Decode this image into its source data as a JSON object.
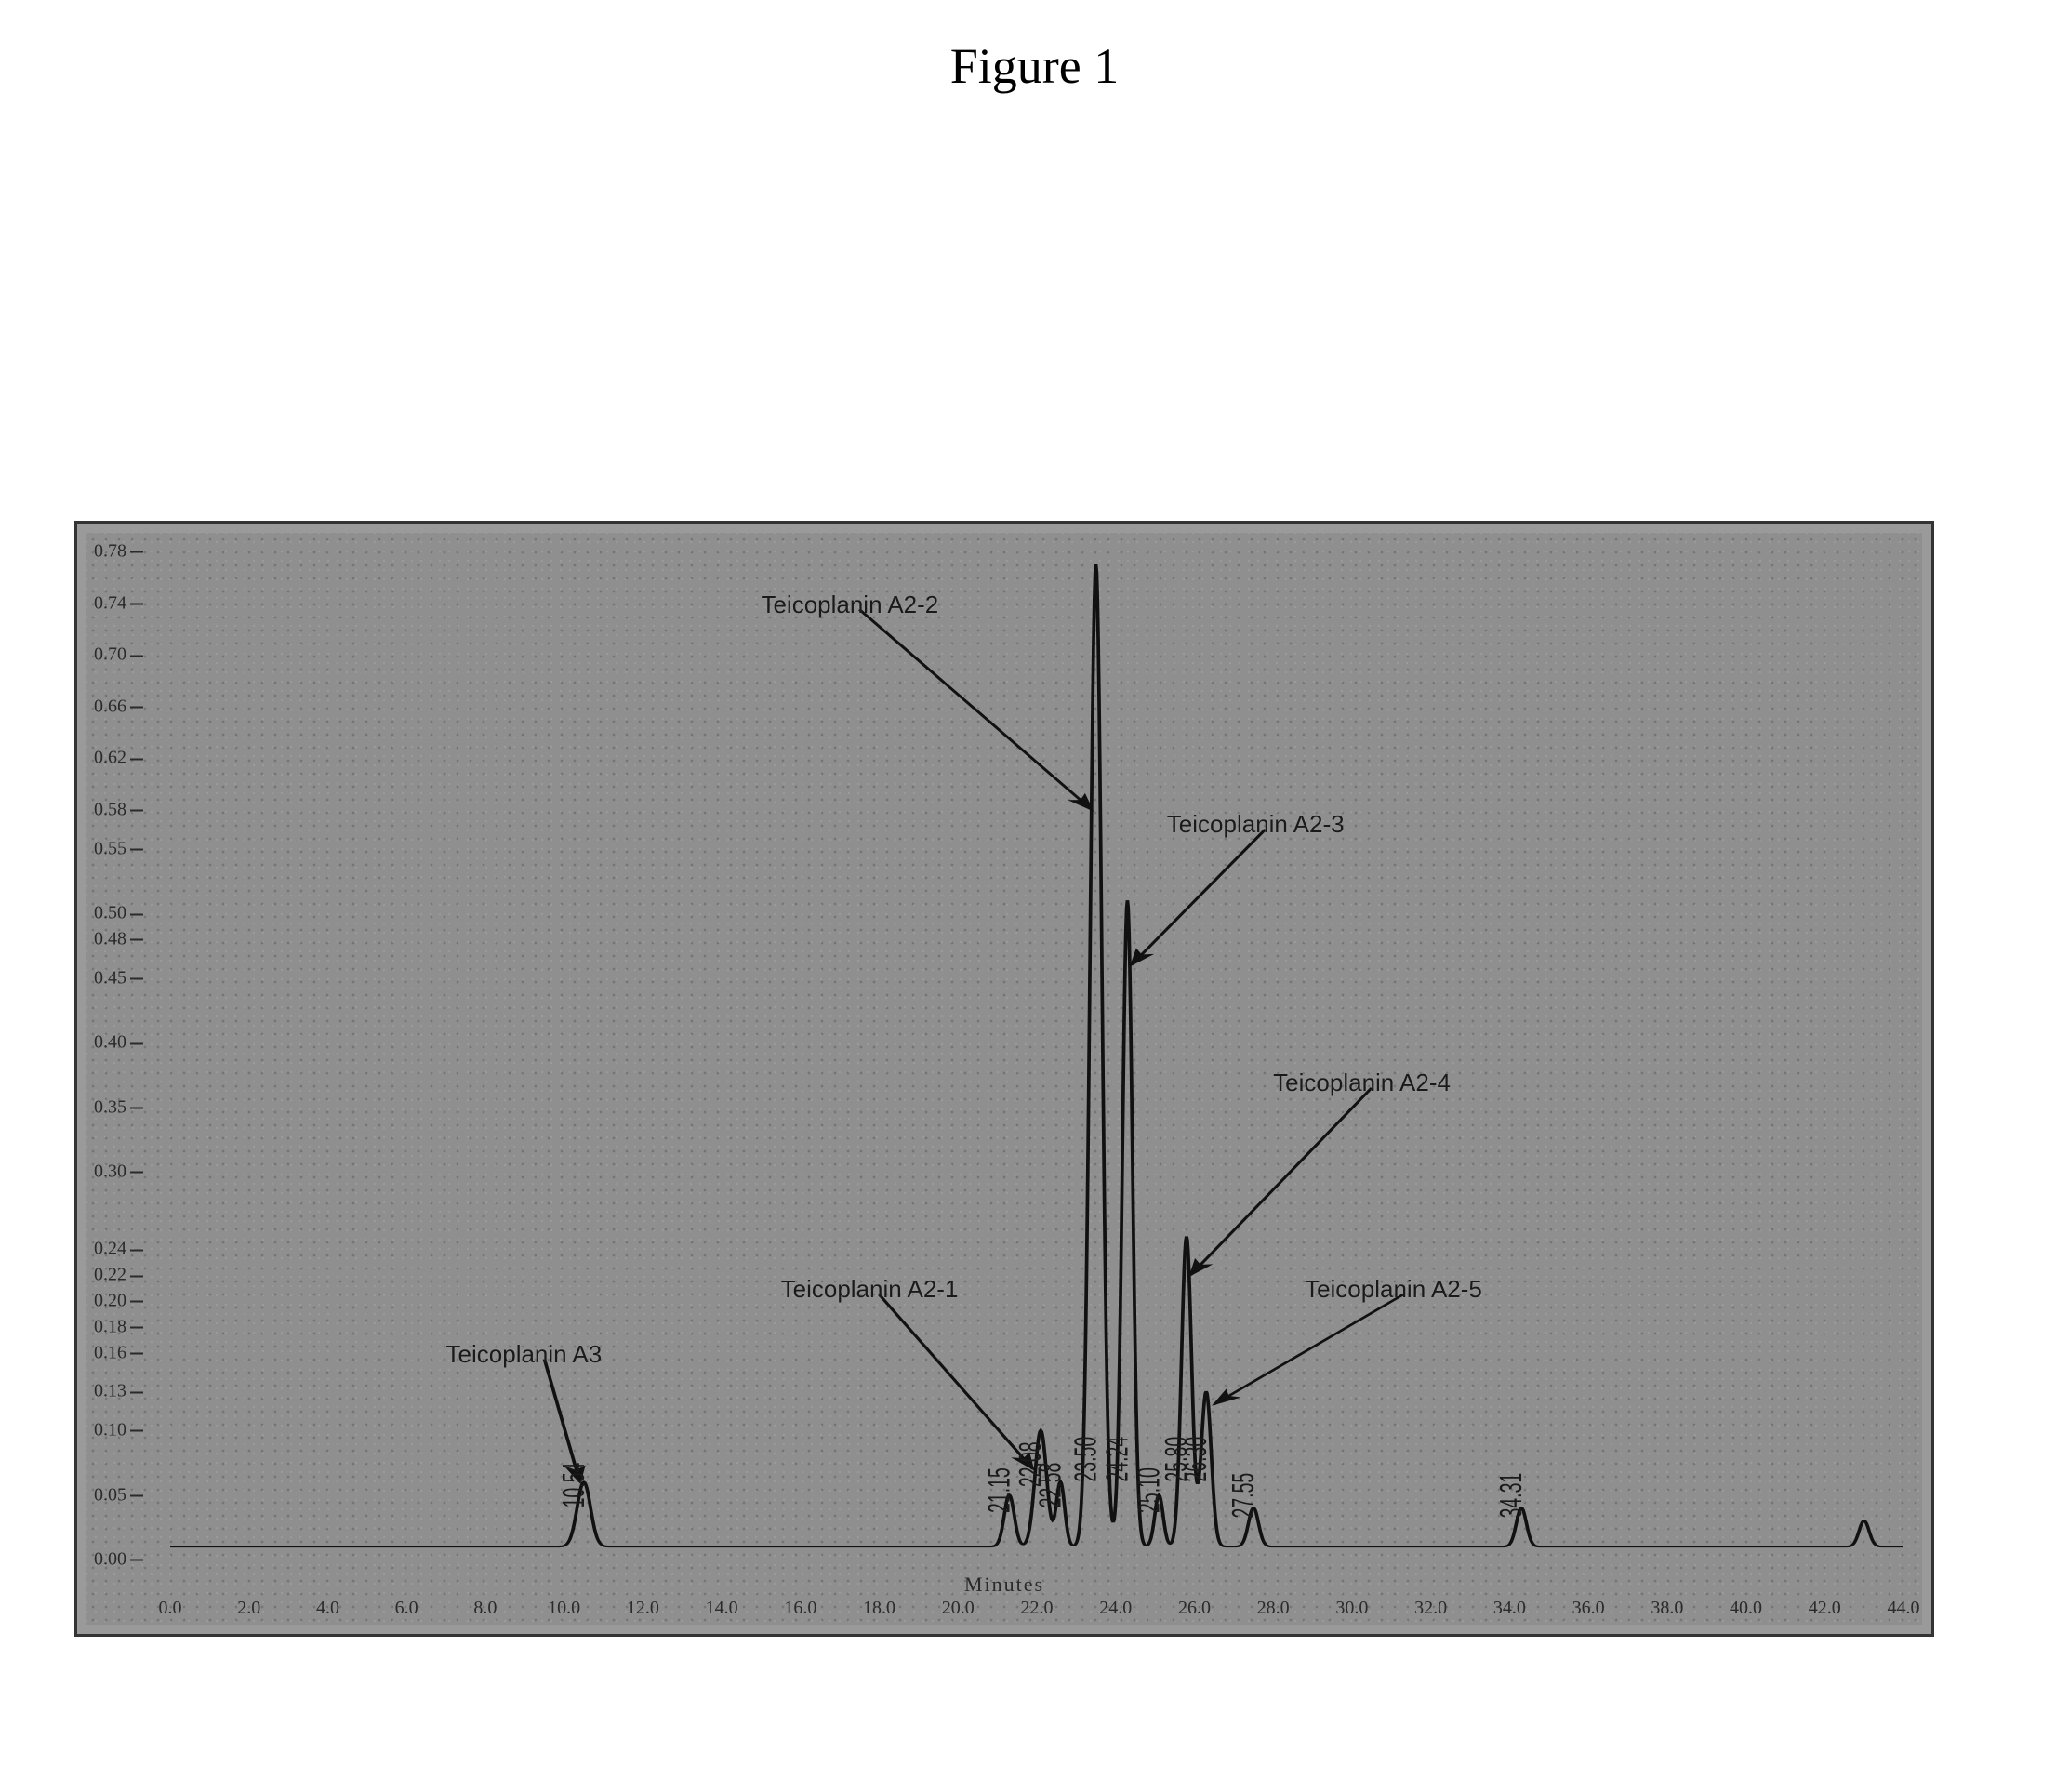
{
  "figure": {
    "title": "Figure 1"
  },
  "chart": {
    "type": "chromatogram",
    "background_color": "#8f8f8f",
    "border_color": "#333333",
    "grid_noise": true,
    "text_color": "#2a2a2a",
    "line_color": "#111111",
    "line_width": 2.0,
    "yaxis": {
      "min": 0.0,
      "max": 0.78,
      "ticks": [
        0.0,
        0.05,
        0.1,
        0.13,
        0.16,
        0.18,
        0.2,
        0.22,
        0.24,
        0.3,
        0.35,
        0.4,
        0.45,
        0.48,
        0.5,
        0.55,
        0.58,
        0.62,
        0.66,
        0.7,
        0.74,
        0.78
      ],
      "tick_labels": [
        "0.00",
        "0.05",
        "0.10",
        "0.13",
        "0.16",
        "0.18",
        "0.20",
        "0.22",
        "0.24",
        "0.30",
        "0.35",
        "0.40",
        "0.45",
        "0.48",
        "0.50",
        "0.55",
        "0.58",
        "0.62",
        "0.66",
        "0.70",
        "0.74",
        "0.78"
      ],
      "fontsize": 20
    },
    "xaxis": {
      "min": 0,
      "max": 44,
      "label": "Minutes",
      "ticks": [
        0,
        2,
        4,
        6,
        8,
        10,
        12,
        14,
        16,
        18,
        20,
        22,
        24,
        26,
        28,
        30,
        32,
        34,
        36,
        38,
        40,
        42,
        44
      ],
      "tick_labels": [
        "0.0",
        "2.0",
        "4.0",
        "6.0",
        "8.0",
        "10.0",
        "12.0",
        "14.0",
        "16.0",
        "18.0",
        "20.0",
        "22.0",
        "24.0",
        "26.0",
        "28.0",
        "30.0",
        "32.0",
        "34.0",
        "36.0",
        "38.0",
        "40.0",
        "42.0",
        "44.0"
      ],
      "fontsize": 20
    },
    "baseline_y": 0.01,
    "peaks": [
      {
        "name": "Teicoplanin A3",
        "x": 10.5,
        "height": 0.05,
        "width": 0.4,
        "rt_label": "10.54"
      },
      {
        "name": "minor-21a",
        "x": 21.3,
        "height": 0.04,
        "width": 0.3,
        "rt_label": "21.15"
      },
      {
        "name": "Teicoplanin A2-1",
        "x": 22.1,
        "height": 0.09,
        "width": 0.35,
        "rt_label": "22.08"
      },
      {
        "name": "minor-22b",
        "x": 22.6,
        "height": 0.05,
        "width": 0.25,
        "rt_label": "22.58"
      },
      {
        "name": "Teicoplanin A2-2",
        "x": 23.5,
        "height": 0.76,
        "width": 0.35,
        "rt_label": "23.50"
      },
      {
        "name": "Teicoplanin A2-3",
        "x": 24.3,
        "height": 0.5,
        "width": 0.3,
        "rt_label": "24.24"
      },
      {
        "name": "minor-25a",
        "x": 25.1,
        "height": 0.04,
        "width": 0.25,
        "rt_label": "25.10"
      },
      {
        "name": "Teicoplanin A2-4",
        "x": 25.8,
        "height": 0.24,
        "width": 0.3,
        "rt_label": "25.80"
      },
      {
        "name": "Teicoplanin A2-5",
        "x": 26.3,
        "height": 0.12,
        "width": 0.3,
        "rt_label": "26.30"
      },
      {
        "name": "minor-27",
        "x": 27.5,
        "height": 0.03,
        "width": 0.3,
        "rt_label": "27.55"
      },
      {
        "name": "minor-34",
        "x": 34.3,
        "height": 0.03,
        "width": 0.3,
        "rt_label": "34.31"
      },
      {
        "name": "minor-43",
        "x": 43.0,
        "height": 0.02,
        "width": 0.3,
        "rt_label": ""
      }
    ],
    "annotations": [
      {
        "id": "a3",
        "text": "Teicoplanin A3",
        "tx": 7.0,
        "ty": 0.17,
        "to_x": 10.4,
        "to_y": 0.06
      },
      {
        "id": "a2_1",
        "text": "Teicoplanin A2-1",
        "tx": 15.5,
        "ty": 0.22,
        "to_x": 21.9,
        "to_y": 0.07
      },
      {
        "id": "a2_2",
        "text": "Teicoplanin A2-2",
        "tx": 15.0,
        "ty": 0.75,
        "to_x": 23.4,
        "to_y": 0.58
      },
      {
        "id": "a2_3",
        "text": "Teicoplanin A2-3",
        "tx": 25.3,
        "ty": 0.58,
        "to_x": 24.4,
        "to_y": 0.46
      },
      {
        "id": "a2_4",
        "text": "Teicoplanin A2-4",
        "tx": 28.0,
        "ty": 0.38,
        "to_x": 25.9,
        "to_y": 0.22
      },
      {
        "id": "a2_5",
        "text": "Teicoplanin A2-5",
        "tx": 28.8,
        "ty": 0.22,
        "to_x": 26.5,
        "to_y": 0.12
      }
    ],
    "annotation_fontsize": 26,
    "arrow_color": "#111111",
    "arrow_width": 2.0
  }
}
